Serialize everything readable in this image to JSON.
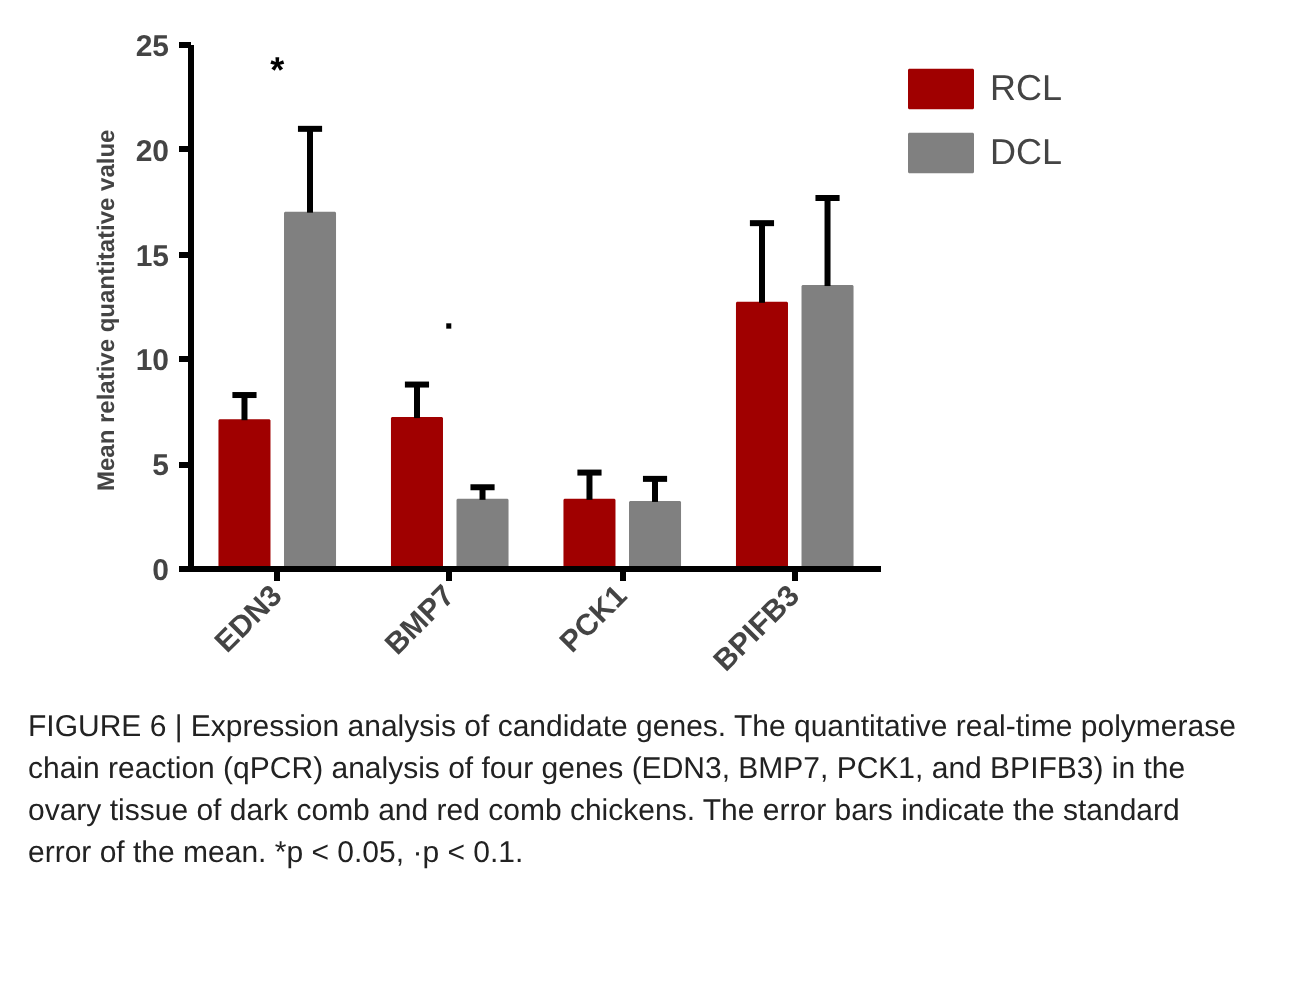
{
  "chart_data": {
    "type": "bar",
    "ylabel": "Mean relative  quantitative value",
    "categories": [
      "EDN3",
      "BMP7",
      "PCK1",
      "BPIFB3"
    ],
    "series": [
      {
        "name": "RCL",
        "color": "#a00000",
        "values": [
          7.1,
          7.2,
          3.3,
          12.7
        ],
        "errors": [
          [
            7.1,
            8.3
          ],
          [
            7.2,
            8.8
          ],
          [
            3.3,
            4.6
          ],
          [
            12.7,
            16.5
          ]
        ]
      },
      {
        "name": "DCL",
        "color": "#808080",
        "values": [
          17.0,
          3.3,
          3.2,
          13.5
        ],
        "errors": [
          [
            17.0,
            21.0
          ],
          [
            3.3,
            3.9
          ],
          [
            3.2,
            4.3
          ],
          [
            13.5,
            17.7
          ]
        ]
      }
    ],
    "ylim": [
      0,
      25
    ],
    "yticks": [
      0,
      5,
      10,
      15,
      20,
      25
    ],
    "grid": false,
    "legend": "top right",
    "annotations": [
      "*",
      "·",
      "FIGURE 6 | Expression analysis of candidate genes. The quantitative real-time polymerase chain reaction (qPCR) analysis of four genes (EDN3, BMP7, PCK1, and BPIFB3) in the ovary tissue of dark comb and red comb chickens. The error bars indicate the standard error of the mean. *p < 0.05, ·p < 0.1."
    ]
  }
}
